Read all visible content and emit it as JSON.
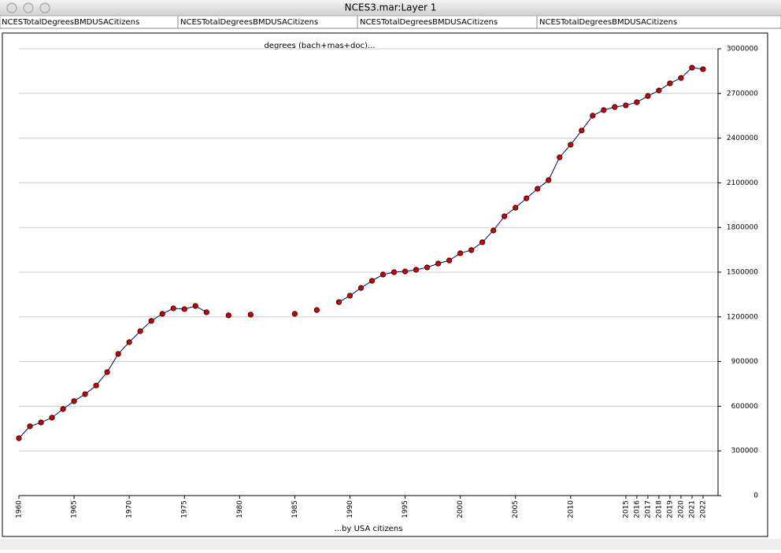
{
  "window": {
    "title": "NCES3.mar:Layer 1",
    "columns": [
      "NCESTotalDegreesBMDUSACitizens",
      "NCESTotalDegreesBMDUSACitizens",
      "NCESTotalDegreesBMDUSACitizens",
      "NCESTotalDegreesBMDUSACitizens"
    ]
  },
  "chart_data": {
    "type": "line",
    "title": "degrees (bach+mas+doc)...",
    "x_label": "...by USA citizens",
    "x": [
      1960,
      1961,
      1962,
      1963,
      1964,
      1965,
      1966,
      1967,
      1968,
      1969,
      1970,
      1971,
      1972,
      1973,
      1974,
      1975,
      1976,
      1977,
      1978,
      1979,
      1980,
      1981,
      1982,
      1983,
      1984,
      1985,
      1986,
      1987,
      1988,
      1989,
      1990,
      1991,
      1992,
      1993,
      1994,
      1995,
      1996,
      1997,
      1998,
      1999,
      2000,
      2001,
      2002,
      2003,
      2004,
      2005,
      2006,
      2007,
      2008,
      2009,
      2010,
      2011,
      2012,
      2013,
      2014,
      2015,
      2016,
      2017,
      2018,
      2019,
      2020,
      2021,
      2022
    ],
    "series": [
      {
        "name": "NCESTotalDegreesBMDUSACitizens",
        "color": "#000080",
        "marker_color": "#cc0000",
        "values": [
          385000,
          465000,
          491000,
          523000,
          581000,
          634000,
          681000,
          739000,
          829000,
          951000,
          1030000,
          1104000,
          1173000,
          1220000,
          1257000,
          1252000,
          1273000,
          1231000,
          null,
          1210000,
          null,
          1215000,
          null,
          null,
          null,
          1220000,
          null,
          1246000,
          null,
          1299000,
          1342000,
          1394000,
          1442000,
          1484000,
          1500000,
          1505000,
          1516000,
          1532000,
          1558000,
          1579000,
          1627000,
          1648000,
          1701000,
          1780000,
          1875000,
          1933000,
          1996000,
          2060000,
          2118000,
          2271000,
          2356000,
          2451000,
          2551000,
          2588000,
          2609000,
          2620000,
          2641000,
          2683000,
          2720000,
          2768000,
          2804000,
          2873000,
          2863000
        ]
      }
    ],
    "xlim": [
      1960,
      2022
    ],
    "xticks": [
      1960,
      1965,
      1970,
      1975,
      1980,
      1985,
      1990,
      1995,
      2000,
      2005,
      2010,
      2015,
      2016,
      2017,
      2018,
      2019,
      2020,
      2021,
      2022
    ],
    "ylim": [
      0,
      3000000
    ],
    "yticks": [
      0,
      300000,
      600000,
      900000,
      1200000,
      1500000,
      1800000,
      2100000,
      2400000,
      2700000,
      3000000
    ],
    "grid": true
  }
}
